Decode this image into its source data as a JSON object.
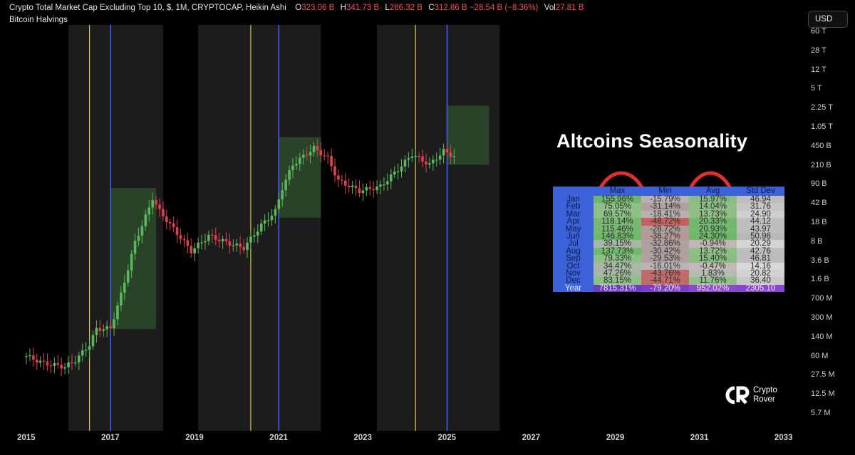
{
  "header": {
    "title": "Crypto Total Market Cap Excluding Top 10, $, 1M, CRYPTOCAP, Heikin Ashi",
    "o_label": "O",
    "o_value": "323.06 B",
    "h_label": "H",
    "h_value": "341.73 B",
    "l_label": "L",
    "l_value": "286.32 B",
    "c_label": "C",
    "c_value": "312.86 B",
    "change": "−28.54 B (−8.36%)",
    "vol_label": "Vol",
    "vol_value": "27.81 B",
    "indicator": "Bitcoin Halvings"
  },
  "currency_button": "USD",
  "colors": {
    "up": "#5cb85c",
    "down": "#e0404a",
    "halving_yellow": "#d9c84a",
    "halving_blue": "#3d63e8",
    "shade": "#1c1c1c",
    "box": "#2a4a2a"
  },
  "chart_data": {
    "type": "candlestick",
    "y_scale": "log",
    "y_ticks": [
      "60 T",
      "28 T",
      "12 T",
      "5 T",
      "2.25 T",
      "1.05 T",
      "450 B",
      "210 B",
      "90 B",
      "42 B",
      "18 B",
      "8 B",
      "3.6 B",
      "1.6 B",
      "700 M",
      "300 M",
      "140 M",
      "60 M",
      "27.5 M",
      "12.5 M",
      "5.7 M"
    ],
    "x_ticks": [
      "2015",
      "2017",
      "2019",
      "2021",
      "2023",
      "2025",
      "2027",
      "2029",
      "2031",
      "2033"
    ],
    "halving_lines": [
      {
        "date": "2016-07",
        "color": "yellow"
      },
      {
        "date": "2017-01",
        "color": "blue"
      },
      {
        "date": "2020-05",
        "color": "yellow"
      },
      {
        "date": "2021-01",
        "color": "blue"
      },
      {
        "date": "2024-04",
        "color": "yellow"
      },
      {
        "date": "2025-01",
        "color": "blue"
      }
    ],
    "shaded_ranges": [
      [
        "2016-01",
        "2018-04"
      ],
      [
        "2019-02",
        "2022-01"
      ],
      [
        "2023-05",
        "2026-04"
      ]
    ],
    "boxes": [
      {
        "from": "2017-01",
        "to": "2018-02",
        "low": "300 M",
        "high": "90 B"
      },
      {
        "from": "2021-01",
        "to": "2022-01",
        "low": "27 B",
        "high": "700 B"
      },
      {
        "from": "2025-01",
        "to": "2026-01",
        "low": "230 B",
        "high": "2.5 T"
      }
    ]
  },
  "seasonality": {
    "title": "Altcoins Seasonality",
    "columns": [
      "",
      "Max",
      "Min",
      "Avg",
      "Std Dev"
    ],
    "rows": [
      {
        "month": "Jan",
        "max": "155.96%",
        "min": "-15.79%",
        "avg": "15.97%",
        "std": "46.94"
      },
      {
        "month": "Feb",
        "max": "75.05%",
        "min": "-31.14%",
        "avg": "14.04%",
        "std": "31.76"
      },
      {
        "month": "Mar",
        "max": "69.57%",
        "min": "-18.41%",
        "avg": "13.73%",
        "std": "24.90"
      },
      {
        "month": "Apr",
        "max": "118.14%",
        "min": "-48.72%",
        "avg": "20.33%",
        "std": "44.12"
      },
      {
        "month": "May",
        "max": "115.46%",
        "min": "-28.72%",
        "avg": "20.93%",
        "std": "43.97"
      },
      {
        "month": "Jun",
        "max": "146.83%",
        "min": "-38.27%",
        "avg": "24.30%",
        "std": "50.96"
      },
      {
        "month": "Jul",
        "max": "39.15%",
        "min": "-32.86%",
        "avg": "-0.94%",
        "std": "20.29"
      },
      {
        "month": "Aug",
        "max": "137.73%",
        "min": "-30.42%",
        "avg": "13.72%",
        "std": "42.76"
      },
      {
        "month": "Sep",
        "max": "79.33%",
        "min": "-29.53%",
        "avg": "15.40%",
        "std": "46.81"
      },
      {
        "month": "Oct",
        "max": "34.47%",
        "min": "-16.01%",
        "avg": "-0.47%",
        "std": "14.16"
      },
      {
        "month": "Nov",
        "max": "47.26%",
        "min": "-43.76%",
        "avg": "1.83%",
        "std": "20.82"
      },
      {
        "month": "Dec",
        "max": "83.15%",
        "min": "-44.71%",
        "avg": "11.76%",
        "std": "36.40"
      }
    ],
    "year": {
      "month": "Year",
      "max": "7815.31%",
      "min": "-79.20%",
      "avg": "952.02%",
      "std": "2305.10"
    }
  },
  "logo": {
    "line1": "Crypto",
    "line2": "Rover"
  }
}
